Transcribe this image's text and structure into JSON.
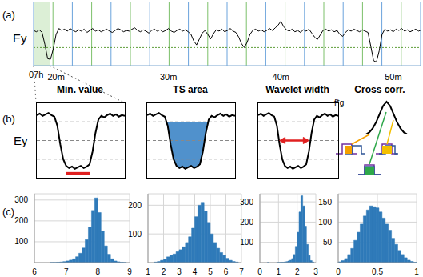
{
  "labels": [
    "(a)",
    "(b)",
    "(c)"
  ],
  "chart_data": [
    {
      "type": "line",
      "y_label": "Ey",
      "x_annotation": "07h",
      "color": "#000000",
      "grid": true,
      "tick_labels": "x",
      "x": [
        18,
        18.25,
        18.5,
        18.75,
        19,
        19.25,
        19.5,
        19.75,
        20,
        20.25,
        20.5,
        20.75,
        21,
        21.25,
        21.5,
        21.75,
        22,
        22.25,
        22.5,
        22.75,
        23,
        23.25,
        23.5,
        23.75,
        24,
        24.25,
        24.5,
        24.75,
        25,
        25.25,
        25.5,
        25.75,
        26,
        26.25,
        26.5,
        26.75,
        27,
        27.25,
        27.5,
        27.75,
        28,
        28.25,
        28.5,
        28.75,
        29,
        29.25,
        29.5,
        29.75,
        30,
        30.25,
        30.5,
        30.75,
        31,
        31.25,
        31.5,
        31.75,
        32,
        32.25,
        32.5,
        32.75,
        33,
        33.25,
        33.5,
        33.75,
        34,
        34.25,
        34.5,
        34.75,
        35,
        35.25,
        35.5,
        35.75,
        36,
        36.25,
        36.5,
        36.75,
        37,
        37.25,
        37.5,
        37.75,
        38,
        38.25,
        38.5,
        38.75,
        39,
        39.25,
        39.5,
        39.75,
        40,
        40.25,
        40.5,
        40.75,
        41,
        41.25,
        41.5,
        41.75,
        42,
        42.25,
        42.5,
        42.75,
        43,
        43.25,
        43.5,
        43.75,
        44,
        44.25,
        44.5,
        44.75,
        45,
        45.25,
        45.5,
        45.75,
        46,
        46.25,
        46.5,
        46.75,
        47,
        47.25,
        47.5,
        47.75,
        48,
        48.25,
        48.5,
        48.75,
        49,
        49.25,
        49.5,
        49.75,
        50,
        50.25,
        50.5,
        50.75,
        51,
        51.25,
        51.5,
        51.75,
        52,
        52.25,
        52.5
      ],
      "values": [
        5.6,
        5.4,
        5.7,
        5.3,
        3.5,
        1.3,
        1.2,
        2.8,
        5.0,
        5.9,
        5.6,
        5.8,
        5.5,
        5.9,
        5.6,
        5.4,
        5.7,
        5.5,
        5.8,
        5.3,
        5.6,
        5.9,
        5.5,
        5.7,
        5.4,
        5.6,
        5.8,
        5.5,
        5.3,
        5.6,
        5.9,
        5.7,
        5.4,
        5.6,
        5.5,
        5.8,
        6.0,
        5.6,
        5.4,
        5.7,
        5.5,
        5.2,
        5.6,
        5.8,
        5.5,
        5.7,
        5.4,
        5.6,
        5.9,
        5.5,
        5.3,
        5.6,
        5.8,
        5.5,
        5.7,
        5.4,
        5.0,
        4.0,
        3.4,
        4.3,
        5.2,
        5.6,
        5.0,
        4.3,
        5.1,
        5.7,
        5.5,
        5.8,
        5.4,
        5.6,
        5.9,
        5.5,
        5.3,
        4.6,
        3.6,
        3.0,
        3.8,
        5.0,
        5.6,
        5.8,
        5.5,
        5.7,
        5.4,
        5.6,
        5.9,
        5.6,
        6.0,
        6.4,
        7.0,
        6.2,
        5.7,
        5.5,
        5.8,
        5.4,
        5.6,
        5.3,
        5.7,
        5.5,
        5.8,
        5.2,
        4.6,
        4.2,
        4.9,
        5.6,
        5.8,
        5.5,
        5.7,
        5.4,
        5.6,
        5.0,
        4.7,
        5.3,
        5.7,
        5.5,
        5.8,
        5.6,
        5.4,
        5.7,
        5.5,
        5.3,
        3.2,
        1.0,
        0.8,
        2.5,
        5.0,
        5.8,
        5.5,
        5.7,
        5.4,
        5.8,
        5.6,
        5.9,
        5.5,
        5.7,
        5.4,
        5.6,
        5.8,
        5.5,
        5.7
      ],
      "xlim": [
        18,
        52.5
      ],
      "xticks": [
        {
          "value": 20,
          "label": "20m"
        },
        {
          "value": 30,
          "label": "30m"
        },
        {
          "value": 40,
          "label": "40m"
        },
        {
          "value": 50,
          "label": "50m"
        }
      ],
      "ylim": [
        0,
        10
      ],
      "yticks": [
        3,
        7.5
      ]
    },
    {
      "type": "line",
      "title": "Min. value",
      "y_label": "Ey",
      "color": "#000000",
      "grid": true,
      "tick_labels": false,
      "x": [
        0,
        1,
        2,
        3,
        4,
        5,
        6,
        7,
        8,
        9,
        10,
        11,
        12,
        13,
        14,
        15,
        16,
        17,
        18,
        19,
        20,
        21,
        22,
        23,
        24,
        25,
        26,
        27,
        28,
        29,
        30
      ],
      "values": [
        8.4,
        8.6,
        8.3,
        8.5,
        8.7,
        8.4,
        8.2,
        7.0,
        4.5,
        2.5,
        1.6,
        1.3,
        1.5,
        1.2,
        1.4,
        1.6,
        1.3,
        1.5,
        1.8,
        3.5,
        6.0,
        7.8,
        8.3,
        8.1,
        8.4,
        8.6,
        8.3,
        8.5,
        8.2,
        8.4,
        8.3
      ],
      "xlim": [
        0,
        30
      ],
      "ylim": [
        0,
        10
      ],
      "yticks": [
        2.5,
        5,
        7.5
      ]
    },
    {
      "type": "area",
      "title": "TS area",
      "color": "#3d85c6",
      "grid": true,
      "tick_labels": false,
      "x": [
        0,
        1,
        2,
        3,
        4,
        5,
        6,
        7,
        8,
        9,
        10,
        11,
        12,
        13,
        14,
        15,
        16,
        17,
        18,
        19,
        20,
        21,
        22,
        23,
        24,
        25,
        26,
        27,
        28,
        29,
        30
      ],
      "values": [
        8.4,
        8.6,
        8.3,
        8.5,
        8.7,
        8.4,
        8.2,
        7.0,
        4.5,
        2.5,
        1.6,
        1.3,
        1.5,
        1.2,
        1.4,
        1.6,
        1.3,
        1.5,
        1.8,
        3.5,
        6.0,
        7.8,
        8.3,
        8.1,
        8.4,
        8.6,
        8.3,
        8.5,
        8.2,
        8.4,
        8.3
      ],
      "xlim": [
        0,
        30
      ],
      "ylim": [
        0,
        10
      ],
      "yticks": [
        2.5,
        5,
        7.5
      ]
    },
    {
      "type": "line",
      "title": "Wavelet width",
      "color": "#000000",
      "grid": true,
      "tick_labels": false,
      "x": [
        0,
        1,
        2,
        3,
        4,
        5,
        6,
        7,
        8,
        9,
        10,
        11,
        12,
        13,
        14,
        15,
        16,
        17,
        18,
        19,
        20,
        21,
        22,
        23,
        24,
        25,
        26,
        27,
        28,
        29,
        30
      ],
      "values": [
        8.4,
        8.6,
        8.3,
        8.5,
        8.7,
        8.4,
        8.2,
        7.0,
        4.5,
        2.5,
        1.6,
        1.3,
        1.5,
        1.2,
        1.4,
        1.6,
        1.3,
        1.5,
        1.8,
        3.5,
        6.0,
        7.8,
        8.3,
        8.1,
        8.4,
        8.6,
        8.3,
        8.5,
        8.2,
        8.4,
        8.3
      ],
      "xlim": [
        0,
        30
      ],
      "ylim": [
        0,
        10
      ],
      "yticks": [
        2.5,
        5,
        7.5
      ]
    },
    {
      "type": "line",
      "title": "Cross corr.",
      "annotations": [
        "f*g"
      ],
      "color": "#000000",
      "tick_labels": false,
      "x": [
        0,
        1,
        2,
        3,
        4,
        5,
        6,
        7,
        8,
        9,
        10,
        11,
        12,
        13,
        14,
        15,
        16,
        17,
        18,
        19,
        20
      ],
      "values": [
        0,
        0,
        0,
        0,
        0,
        0.5,
        1.5,
        3,
        5,
        7,
        8,
        7,
        5,
        3,
        1.5,
        0.5,
        0,
        0,
        0,
        0,
        0
      ],
      "xlim": [
        0,
        20
      ],
      "ylim": [
        0,
        9
      ]
    },
    {
      "type": "histogram",
      "color": "#2f7ab9",
      "grid": true,
      "bins": [
        6,
        6.1,
        6.2,
        6.3,
        6.4,
        6.5,
        6.6,
        6.7,
        6.8,
        6.9,
        7,
        7.1,
        7.2,
        7.3,
        7.4,
        7.5,
        7.6,
        7.7,
        7.8,
        7.9,
        8,
        8.1,
        8.2,
        8.3,
        8.4,
        8.5,
        8.6,
        8.7,
        8.8,
        8.9,
        9
      ],
      "counts": [
        0,
        0,
        0,
        0,
        0,
        1,
        1,
        2,
        3,
        5,
        8,
        12,
        18,
        28,
        45,
        70,
        110,
        170,
        250,
        310,
        240,
        150,
        80,
        40,
        18,
        8,
        4,
        2,
        1,
        0
      ],
      "xlim": [
        6,
        9
      ],
      "xticks": [
        6,
        7,
        8,
        9
      ],
      "ylim": [
        0,
        330
      ],
      "yticks": [
        100,
        200,
        300
      ]
    },
    {
      "type": "histogram",
      "color": "#2f7ab9",
      "grid": true,
      "bins": [
        1,
        1.2,
        1.4,
        1.6,
        1.8,
        2,
        2.2,
        2.4,
        2.6,
        2.8,
        3,
        3.2,
        3.4,
        3.6,
        3.8,
        4,
        4.2,
        4.4,
        4.6,
        4.8,
        5,
        5.2,
        5.4,
        5.6,
        5.8,
        6,
        6.2,
        6.4,
        6.6,
        6.8,
        7
      ],
      "counts": [
        0,
        0,
        2,
        4,
        8,
        12,
        20,
        25,
        30,
        38,
        45,
        55,
        70,
        90,
        120,
        160,
        200,
        210,
        180,
        140,
        100,
        70,
        50,
        35,
        25,
        15,
        8,
        4,
        2,
        0
      ],
      "xlim": [
        1,
        7
      ],
      "xticks": [
        1,
        2,
        3,
        4,
        5,
        6,
        7
      ],
      "ylim": [
        0,
        240
      ],
      "yticks": [
        100,
        200
      ]
    },
    {
      "type": "histogram",
      "color": "#2f7ab9",
      "grid": true,
      "bins": [
        0,
        0.1,
        0.2,
        0.3,
        0.4,
        0.5,
        0.6,
        0.7,
        0.8,
        0.9,
        1,
        1.1,
        1.2,
        1.3,
        1.4,
        1.5,
        1.6,
        1.7,
        1.8,
        1.9,
        2,
        2.1,
        2.2,
        2.3,
        2.4,
        2.5,
        2.6,
        2.7,
        2.8,
        2.9,
        3
      ],
      "counts": [
        0,
        0,
        0,
        0,
        1,
        0,
        0,
        0,
        0,
        1,
        1,
        2,
        2,
        3,
        5,
        8,
        12,
        20,
        40,
        80,
        150,
        250,
        330,
        280,
        180,
        90,
        35,
        10,
        3,
        0
      ],
      "xlim": [
        0,
        3
      ],
      "xticks": [
        0,
        1,
        2,
        3
      ],
      "ylim": [
        0,
        340
      ],
      "yticks": [
        100,
        200,
        300
      ]
    },
    {
      "type": "histogram",
      "color": "#2f7ab9",
      "grid": true,
      "bins": [
        0,
        0.04,
        0.08,
        0.12,
        0.16,
        0.2,
        0.24,
        0.28,
        0.32,
        0.36,
        0.4,
        0.44,
        0.48,
        0.52,
        0.56,
        0.6,
        0.64,
        0.68,
        0.72,
        0.76,
        0.8,
        0.84,
        0.88,
        0.92,
        0.96,
        1
      ],
      "counts": [
        2,
        5,
        10,
        20,
        35,
        55,
        75,
        95,
        115,
        130,
        140,
        138,
        135,
        125,
        110,
        95,
        80,
        60,
        45,
        30,
        20,
        12,
        6,
        3,
        1
      ],
      "xlim": [
        0,
        1
      ],
      "xticks": [
        0,
        0.5,
        1
      ],
      "ylim": [
        0,
        170
      ],
      "yticks": [
        50,
        100,
        150
      ]
    }
  ]
}
